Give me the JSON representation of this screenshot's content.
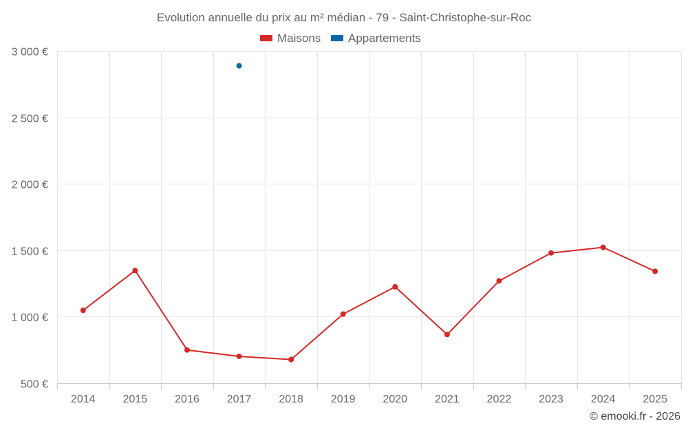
{
  "chart_data": {
    "type": "line",
    "title": "Evolution annuelle du prix au m² médian - 79 - Saint-Christophe-sur-Roc",
    "x": [
      "2014",
      "2015",
      "2016",
      "2017",
      "2018",
      "2019",
      "2020",
      "2021",
      "2022",
      "2023",
      "2024",
      "2025"
    ],
    "y_ticks": [
      "3 000 €",
      "2 500 €",
      "2 000 €",
      "1 500 €",
      "1 000 €",
      "500 €"
    ],
    "y_tick_values": [
      3000,
      2500,
      2000,
      1500,
      1000,
      500
    ],
    "ylim": [
      500,
      3000
    ],
    "grid": true,
    "legend_position": "top-center",
    "series": [
      {
        "name": "Maisons",
        "color": "#d62728",
        "values": [
          1048,
          1348,
          750,
          702,
          678,
          1020,
          1225,
          866,
          1270,
          1480,
          1522,
          1342
        ]
      },
      {
        "name": "Appartements",
        "color": "#0868a8",
        "values": [
          null,
          null,
          null,
          2888,
          null,
          null,
          null,
          null,
          null,
          null,
          null,
          null
        ]
      }
    ],
    "credit": "© emooki.fr - 2026"
  }
}
